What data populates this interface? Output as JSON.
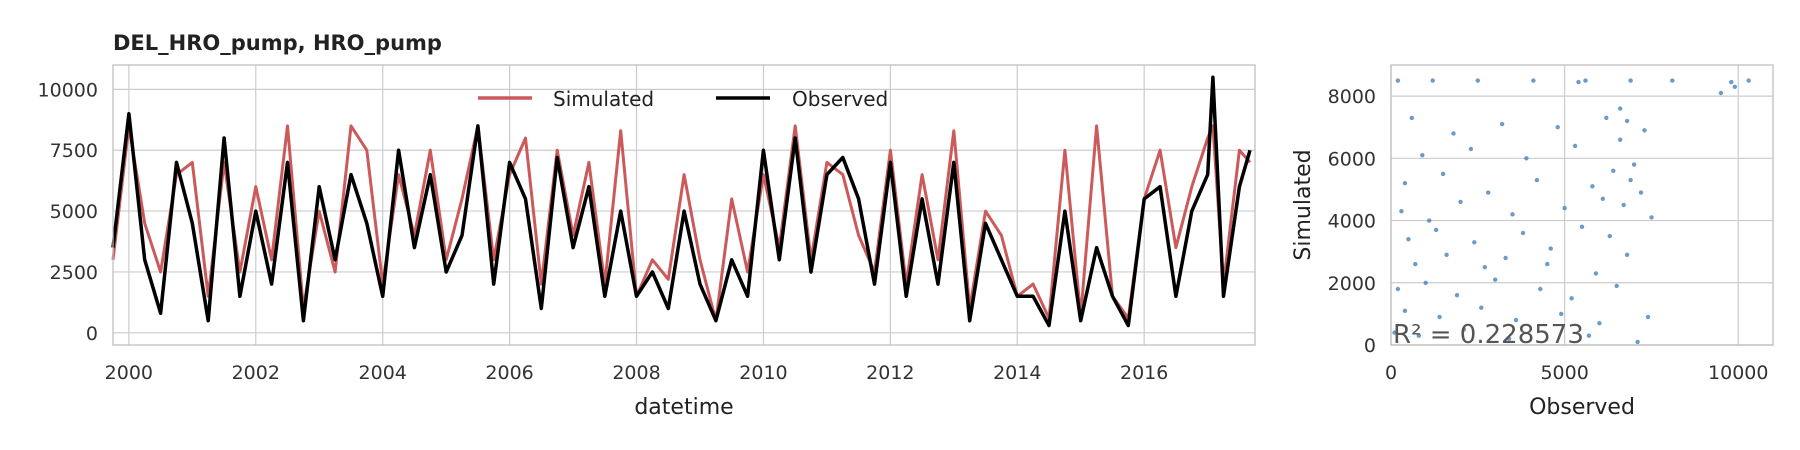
{
  "title": "DEL_HRO_pump, HRO_pump",
  "chart_data": [
    {
      "type": "line",
      "xlabel": "datetime",
      "ylabel": "",
      "xlim": [
        "1999-10-01",
        "2017-09-30"
      ],
      "ylim": [
        -500,
        11000
      ],
      "xticks": [
        "2000",
        "2002",
        "2004",
        "2006",
        "2008",
        "2010",
        "2012",
        "2014",
        "2016"
      ],
      "yticks": [
        "0",
        "2500",
        "5000",
        "7500",
        "10000"
      ],
      "grid": true,
      "legend": "top-center",
      "x": [
        "1999-10",
        "2000-01",
        "2000-04",
        "2000-07",
        "2000-10",
        "2001-01",
        "2001-04",
        "2001-07",
        "2001-10",
        "2002-01",
        "2002-04",
        "2002-07",
        "2002-10",
        "2003-01",
        "2003-04",
        "2003-07",
        "2003-10",
        "2004-01",
        "2004-04",
        "2004-07",
        "2004-10",
        "2005-01",
        "2005-04",
        "2005-07",
        "2005-10",
        "2006-01",
        "2006-04",
        "2006-07",
        "2006-10",
        "2007-01",
        "2007-04",
        "2007-07",
        "2007-10",
        "2008-01",
        "2008-04",
        "2008-07",
        "2008-10",
        "2009-01",
        "2009-04",
        "2009-07",
        "2009-10",
        "2010-01",
        "2010-04",
        "2010-07",
        "2010-10",
        "2011-01",
        "2011-04",
        "2011-07",
        "2011-10",
        "2012-01",
        "2012-04",
        "2012-07",
        "2012-10",
        "2013-01",
        "2013-04",
        "2013-07",
        "2013-10",
        "2014-01",
        "2014-04",
        "2014-07",
        "2014-10",
        "2015-01",
        "2015-04",
        "2015-07",
        "2015-10",
        "2016-01",
        "2016-04",
        "2016-07",
        "2016-10",
        "2017-01",
        "2017-02",
        "2017-04",
        "2017-07",
        "2017-09"
      ],
      "series": [
        {
          "name": "Simulated",
          "color": "#cc5a5a",
          "values": [
            3000,
            8500,
            4500,
            2500,
            6500,
            7000,
            1500,
            7000,
            2500,
            6000,
            3000,
            8500,
            1000,
            5000,
            2500,
            8500,
            7500,
            2000,
            6500,
            4000,
            7500,
            3000,
            5500,
            8500,
            3000,
            6500,
            8000,
            2000,
            7500,
            4000,
            7000,
            2000,
            8300,
            1500,
            3000,
            2200,
            6500,
            3000,
            500,
            5500,
            2500,
            6500,
            3500,
            8500,
            3000,
            7000,
            6500,
            4000,
            2500,
            7500,
            2000,
            6500,
            3000,
            8300,
            1000,
            5000,
            4000,
            1500,
            2000,
            600,
            7500,
            700,
            8500,
            1500,
            600,
            5500,
            7500,
            3500,
            6000,
            8000,
            8500,
            2000,
            7500,
            7000
          ]
        },
        {
          "name": "Observed",
          "color": "#000000",
          "values": [
            3500,
            9000,
            3000,
            800,
            7000,
            4500,
            500,
            8000,
            1500,
            5000,
            2000,
            7000,
            500,
            6000,
            3000,
            6500,
            4500,
            1500,
            7500,
            3500,
            6500,
            2500,
            4000,
            8500,
            2000,
            7000,
            5500,
            1000,
            7200,
            3500,
            6000,
            1500,
            5000,
            1500,
            2500,
            1000,
            5000,
            2000,
            500,
            3000,
            1500,
            7500,
            3000,
            8000,
            2500,
            6500,
            7200,
            5500,
            2000,
            7000,
            1500,
            5500,
            2000,
            7000,
            500,
            4500,
            3000,
            1500,
            1500,
            300,
            5000,
            500,
            3500,
            1500,
            300,
            5500,
            6000,
            1500,
            5000,
            6500,
            10500,
            1500,
            6000,
            7500
          ]
        }
      ]
    },
    {
      "type": "scatter",
      "xlabel": "Observed",
      "ylabel": "Simulated",
      "xlim": [
        0,
        11000
      ],
      "ylim": [
        0,
        9000
      ],
      "xticks": [
        "0",
        "5000",
        "10000"
      ],
      "yticks": [
        "0",
        "2000",
        "4000",
        "6000",
        "8000"
      ],
      "grid": true,
      "color": "#3a7ab8",
      "annotation": "R² = 0.228573",
      "points": [
        [
          200,
          8500
        ],
        [
          1200,
          8500
        ],
        [
          2500,
          8500
        ],
        [
          4100,
          8500
        ],
        [
          5600,
          8500
        ],
        [
          6900,
          8500
        ],
        [
          8100,
          8500
        ],
        [
          9800,
          8450
        ],
        [
          10300,
          8500
        ],
        [
          600,
          7300
        ],
        [
          1800,
          6800
        ],
        [
          3200,
          7100
        ],
        [
          4800,
          7000
        ],
        [
          6200,
          7300
        ],
        [
          6800,
          7200
        ],
        [
          7300,
          6900
        ],
        [
          900,
          6100
        ],
        [
          2300,
          6300
        ],
        [
          3900,
          6000
        ],
        [
          5300,
          6400
        ],
        [
          6600,
          6600
        ],
        [
          7000,
          5800
        ],
        [
          400,
          5200
        ],
        [
          1500,
          5500
        ],
        [
          2800,
          4900
        ],
        [
          4200,
          5300
        ],
        [
          5800,
          5100
        ],
        [
          6400,
          5600
        ],
        [
          6900,
          5300
        ],
        [
          7200,
          4900
        ],
        [
          300,
          4300
        ],
        [
          1100,
          4000
        ],
        [
          2000,
          4600
        ],
        [
          3500,
          4200
        ],
        [
          5000,
          4400
        ],
        [
          6100,
          4700
        ],
        [
          6700,
          4500
        ],
        [
          7500,
          4100
        ],
        [
          500,
          3400
        ],
        [
          1300,
          3700
        ],
        [
          2400,
          3300
        ],
        [
          3800,
          3600
        ],
        [
          4600,
          3100
        ],
        [
          5500,
          3800
        ],
        [
          6300,
          3500
        ],
        [
          700,
          2600
        ],
        [
          1600,
          2900
        ],
        [
          2700,
          2500
        ],
        [
          3300,
          2800
        ],
        [
          4500,
          2600
        ],
        [
          5900,
          2300
        ],
        [
          6800,
          2900
        ],
        [
          200,
          1800
        ],
        [
          1000,
          2000
        ],
        [
          1900,
          1600
        ],
        [
          3000,
          2100
        ],
        [
          4300,
          1800
        ],
        [
          5200,
          1500
        ],
        [
          6500,
          1900
        ],
        [
          400,
          1100
        ],
        [
          1400,
          900
        ],
        [
          2600,
          1200
        ],
        [
          3600,
          800
        ],
        [
          4900,
          1000
        ],
        [
          6000,
          700
        ],
        [
          7400,
          900
        ],
        [
          100,
          400
        ],
        [
          800,
          300
        ],
        [
          2100,
          500
        ],
        [
          3400,
          200
        ],
        [
          5700,
          300
        ],
        [
          7100,
          100
        ],
        [
          9500,
          8100
        ],
        [
          9900,
          8300
        ],
        [
          5400,
          8450
        ],
        [
          6600,
          7600
        ]
      ]
    }
  ]
}
